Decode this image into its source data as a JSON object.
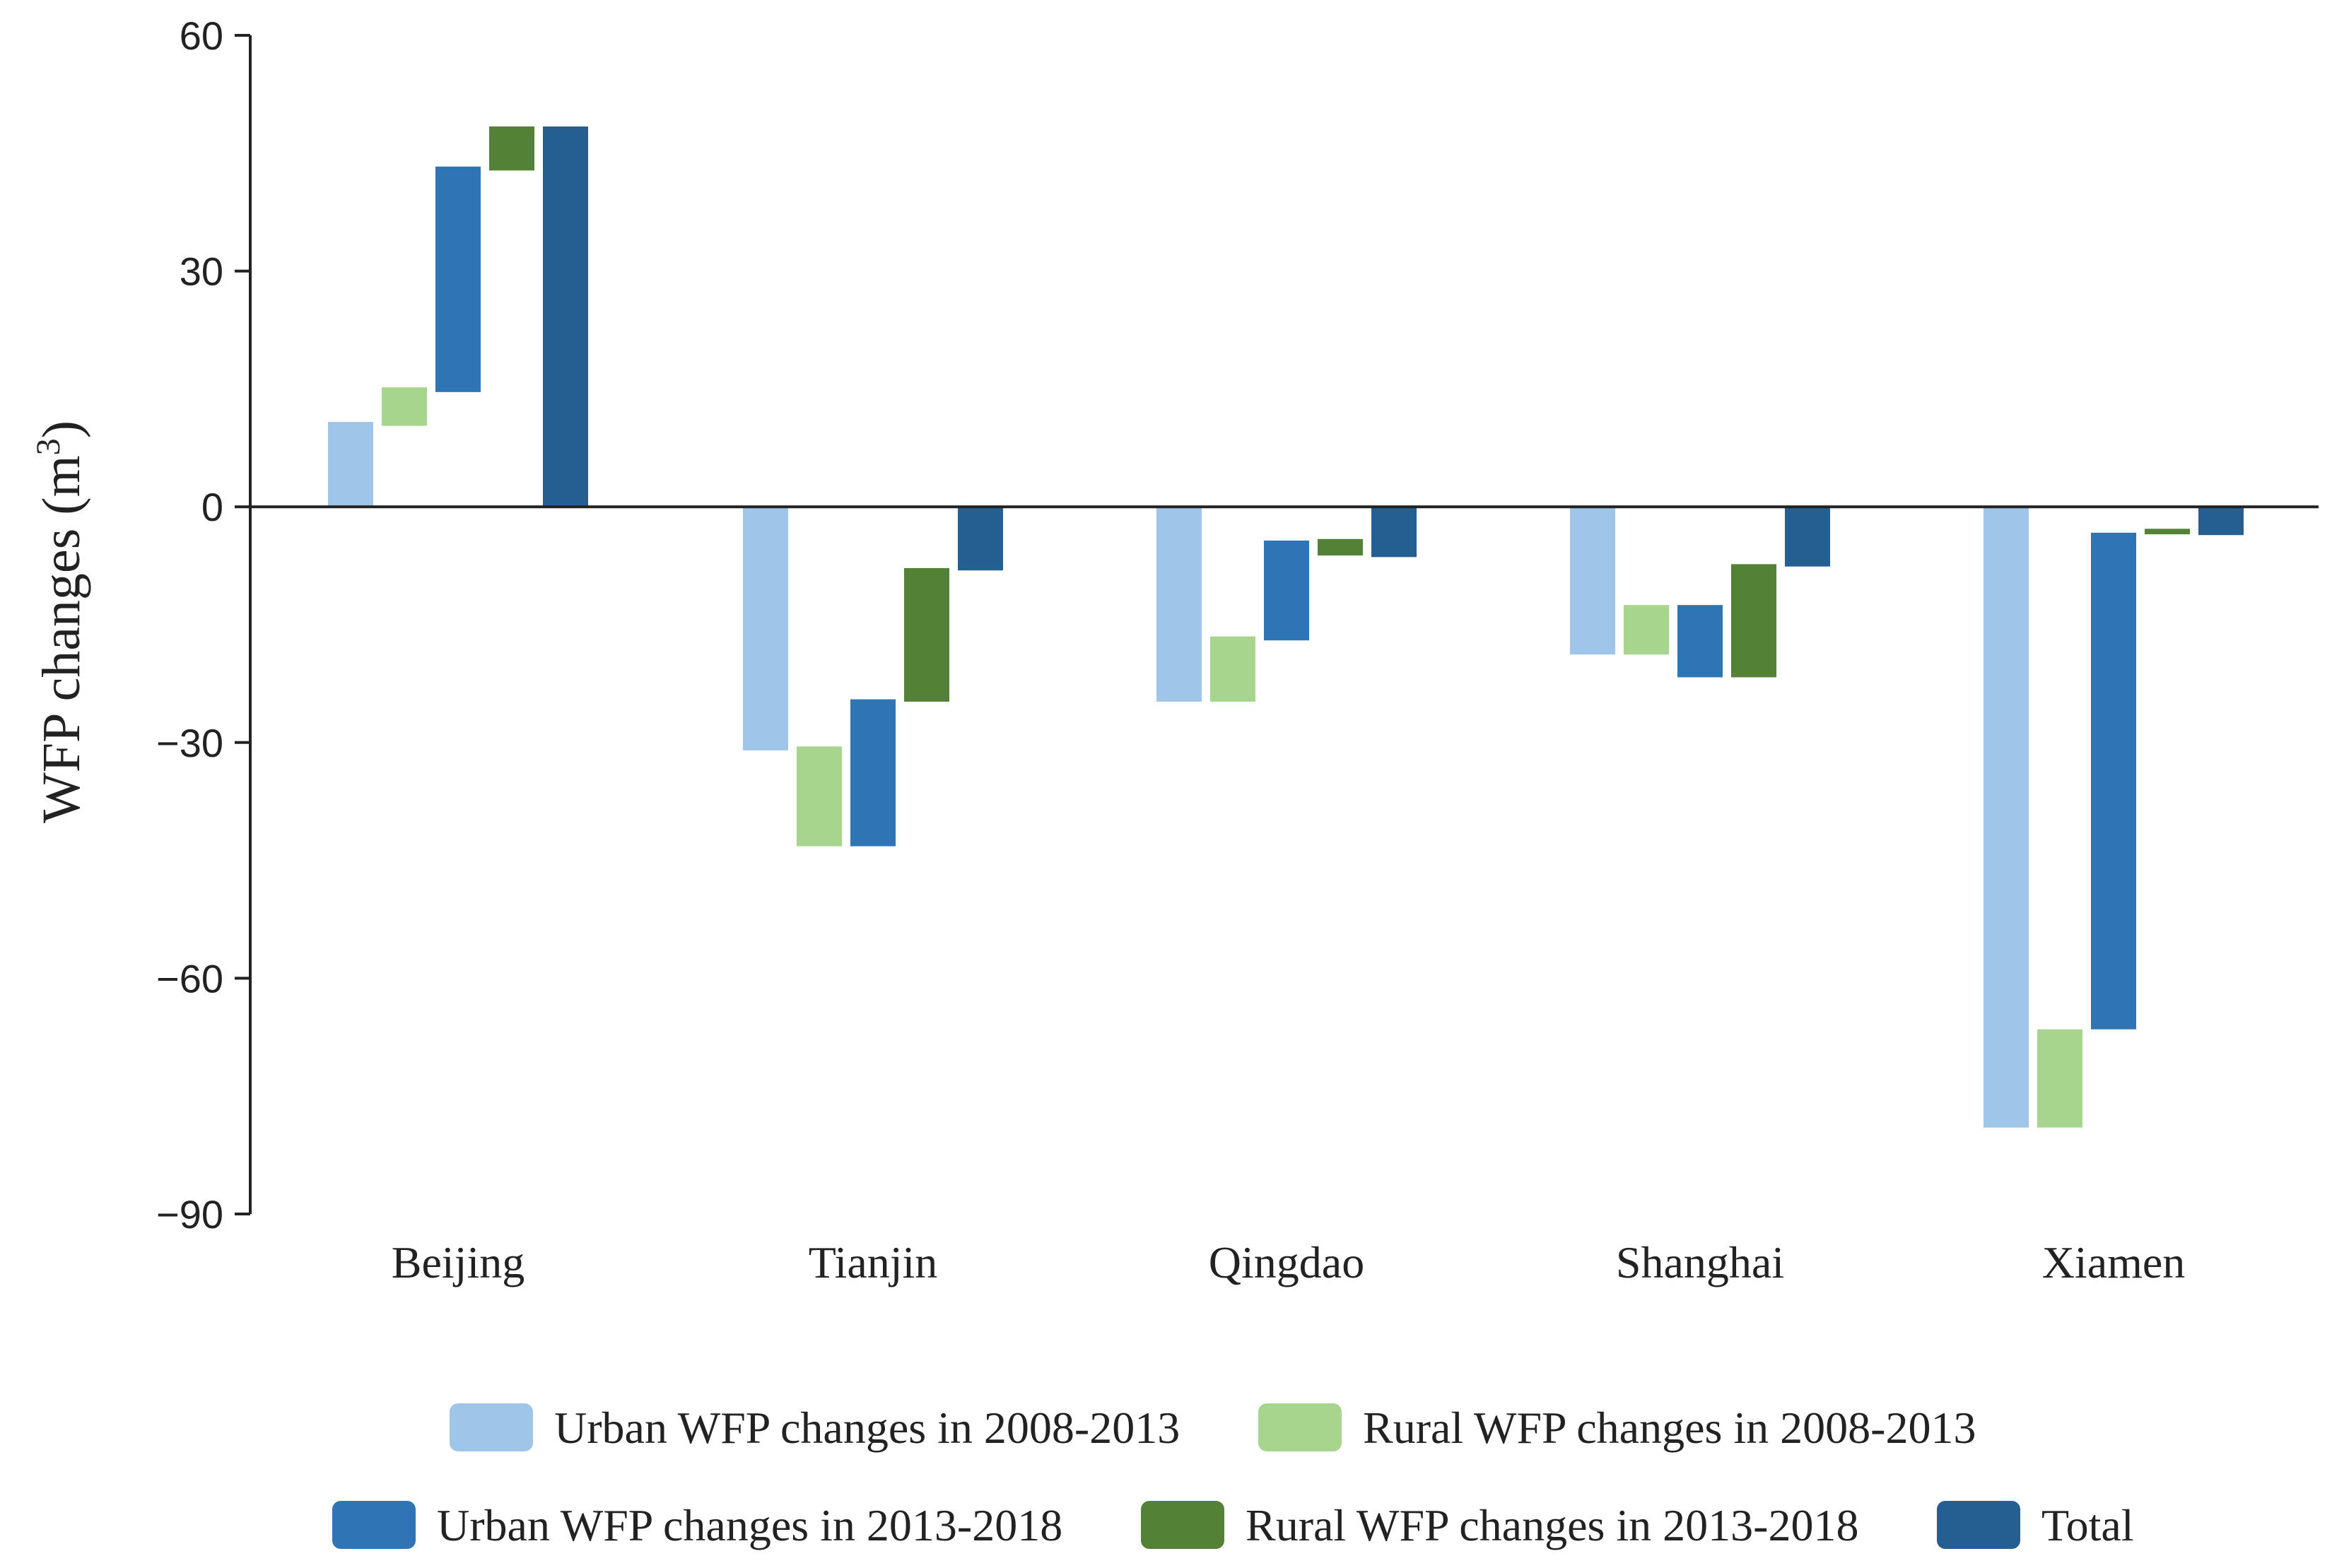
{
  "chart_data": {
    "type": "bar",
    "subtype": "waterfall",
    "categories": [
      "Beijing",
      "Tianjin",
      "Qingdao",
      "Shanghai",
      "Xiamen"
    ],
    "ylabel": "WFP changes (m³)",
    "ylabel_main": "WFP changes (m",
    "ylabel_sup": "3",
    "ylabel_close": ")",
    "xlabel": "",
    "ylim": [
      -90,
      60
    ],
    "yticks": [
      60,
      30,
      0,
      -30,
      -60,
      -90
    ],
    "ytick_labels": [
      "60",
      "30",
      "0",
      "−30",
      "−60",
      "−90"
    ],
    "series": [
      {
        "name": "Urban WFP changes in 2008-2013",
        "color": "#9fc5e8",
        "ranges": [
          [
            0,
            10.8
          ],
          [
            -31,
            0
          ],
          [
            -24.8,
            0
          ],
          [
            -18.8,
            0
          ],
          [
            -79,
            0
          ]
        ]
      },
      {
        "name": "Rural WFP changes in 2008-2013",
        "color": "#a8d58d",
        "ranges": [
          [
            10.3,
            15.2
          ],
          [
            -43.2,
            -30.5
          ],
          [
            -24.8,
            -16.5
          ],
          [
            -18.8,
            -12.5
          ],
          [
            -79,
            -66.5
          ]
        ]
      },
      {
        "name": "Urban WFP changes in 2013-2018",
        "color": "#2e75b6",
        "ranges": [
          [
            14.6,
            43.3
          ],
          [
            -43.2,
            -24.5
          ],
          [
            -17,
            -4.3
          ],
          [
            -21.7,
            -12.5
          ],
          [
            -66.5,
            -3.3
          ]
        ]
      },
      {
        "name": "Rural WFP changes in 2013-2018",
        "color": "#538135",
        "ranges": [
          [
            42.8,
            48.4
          ],
          [
            -24.8,
            -7.8
          ],
          [
            -6.2,
            -4.1
          ],
          [
            -21.7,
            -7.3
          ],
          [
            -3.5,
            -2.8
          ]
        ]
      },
      {
        "name": "Total",
        "color": "#255e91",
        "ranges": [
          [
            0,
            48.4
          ],
          [
            -8.1,
            0
          ],
          [
            -6.4,
            0
          ],
          [
            -7.6,
            0
          ],
          [
            -3.6,
            0
          ]
        ]
      }
    ],
    "legend_position": "bottom"
  }
}
